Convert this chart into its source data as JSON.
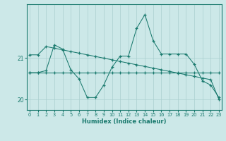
{
  "xlabel": "Humidex (Indice chaleur)",
  "bg_color": "#cce8e8",
  "grid_color": "#aacfcf",
  "line_color": "#1a7a6e",
  "xticks": [
    0,
    1,
    2,
    3,
    4,
    5,
    6,
    7,
    8,
    9,
    10,
    11,
    12,
    13,
    14,
    15,
    16,
    17,
    18,
    19,
    20,
    21,
    22,
    23
  ],
  "yticks": [
    20,
    21
  ],
  "xlim": [
    -0.3,
    23.3
  ],
  "ylim": [
    19.75,
    22.3
  ],
  "lineA_y": [
    20.65,
    20.65,
    20.65,
    20.65,
    20.65,
    20.65,
    20.65,
    20.65,
    20.65,
    20.65,
    20.65,
    20.65,
    20.65,
    20.65,
    20.65,
    20.65,
    20.65,
    20.65,
    20.65,
    20.65,
    20.65,
    20.65,
    20.65,
    20.65
  ],
  "lineB_y": [
    20.65,
    20.65,
    20.7,
    21.32,
    21.22,
    20.72,
    20.5,
    20.05,
    20.05,
    20.35,
    20.78,
    21.05,
    21.05,
    21.72,
    22.05,
    21.42,
    21.1,
    21.1,
    21.1,
    21.1,
    20.85,
    20.45,
    20.35,
    20.05
  ],
  "lineC_y": [
    21.08,
    21.08,
    21.28,
    21.24,
    21.2,
    21.16,
    21.12,
    21.08,
    21.04,
    21.0,
    20.96,
    20.92,
    20.88,
    20.84,
    20.8,
    20.76,
    20.72,
    20.68,
    20.64,
    20.6,
    20.56,
    20.52,
    20.48,
    20.0
  ]
}
